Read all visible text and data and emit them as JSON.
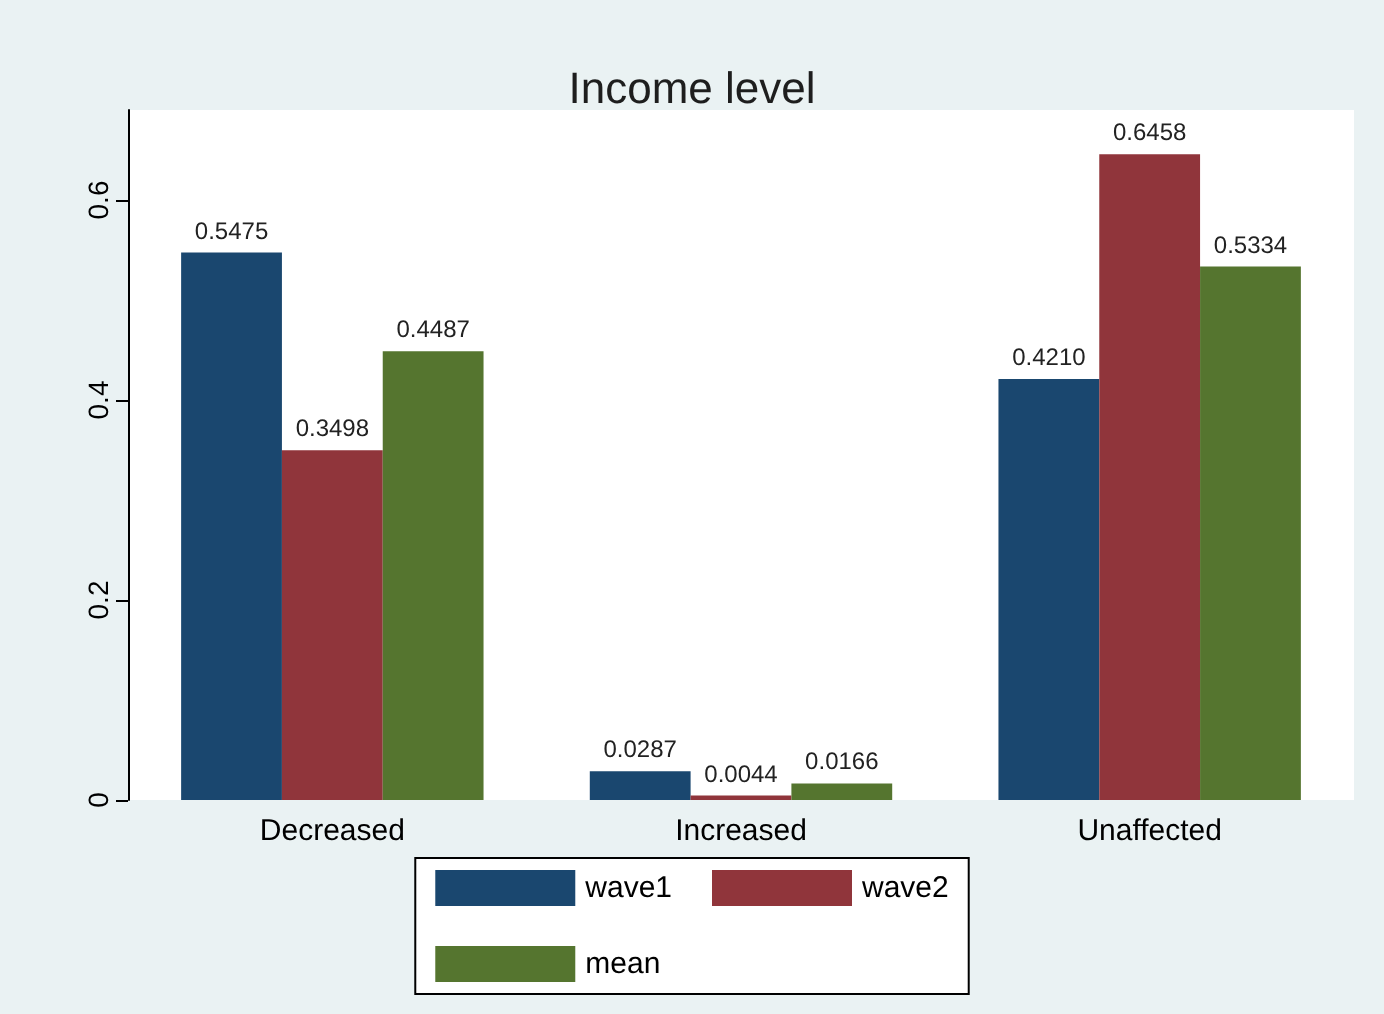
{
  "chart_data": {
    "type": "bar",
    "title": "Income level",
    "categories": [
      "Decreased",
      "Increased",
      "Unaffected"
    ],
    "series": [
      {
        "name": "wave1",
        "color": "#1a476f",
        "values": [
          0.5475,
          0.0287,
          0.421
        ],
        "value_labels": [
          "0.5475",
          "0.0287",
          "0.4210"
        ]
      },
      {
        "name": "wave2",
        "color": "#90353b",
        "values": [
          0.3498,
          0.0044,
          0.6458
        ],
        "value_labels": [
          "0.3498",
          "0.0044",
          "0.6458"
        ]
      },
      {
        "name": "mean",
        "color": "#55752f",
        "values": [
          0.4487,
          0.0166,
          0.5334
        ],
        "value_labels": [
          "0.4487",
          "0.0166",
          "0.5334"
        ]
      }
    ],
    "ylim": [
      0,
      0.69
    ],
    "yticks": [
      0,
      0.2,
      0.4,
      0.6
    ],
    "grid": false,
    "legend": "bottom"
  }
}
